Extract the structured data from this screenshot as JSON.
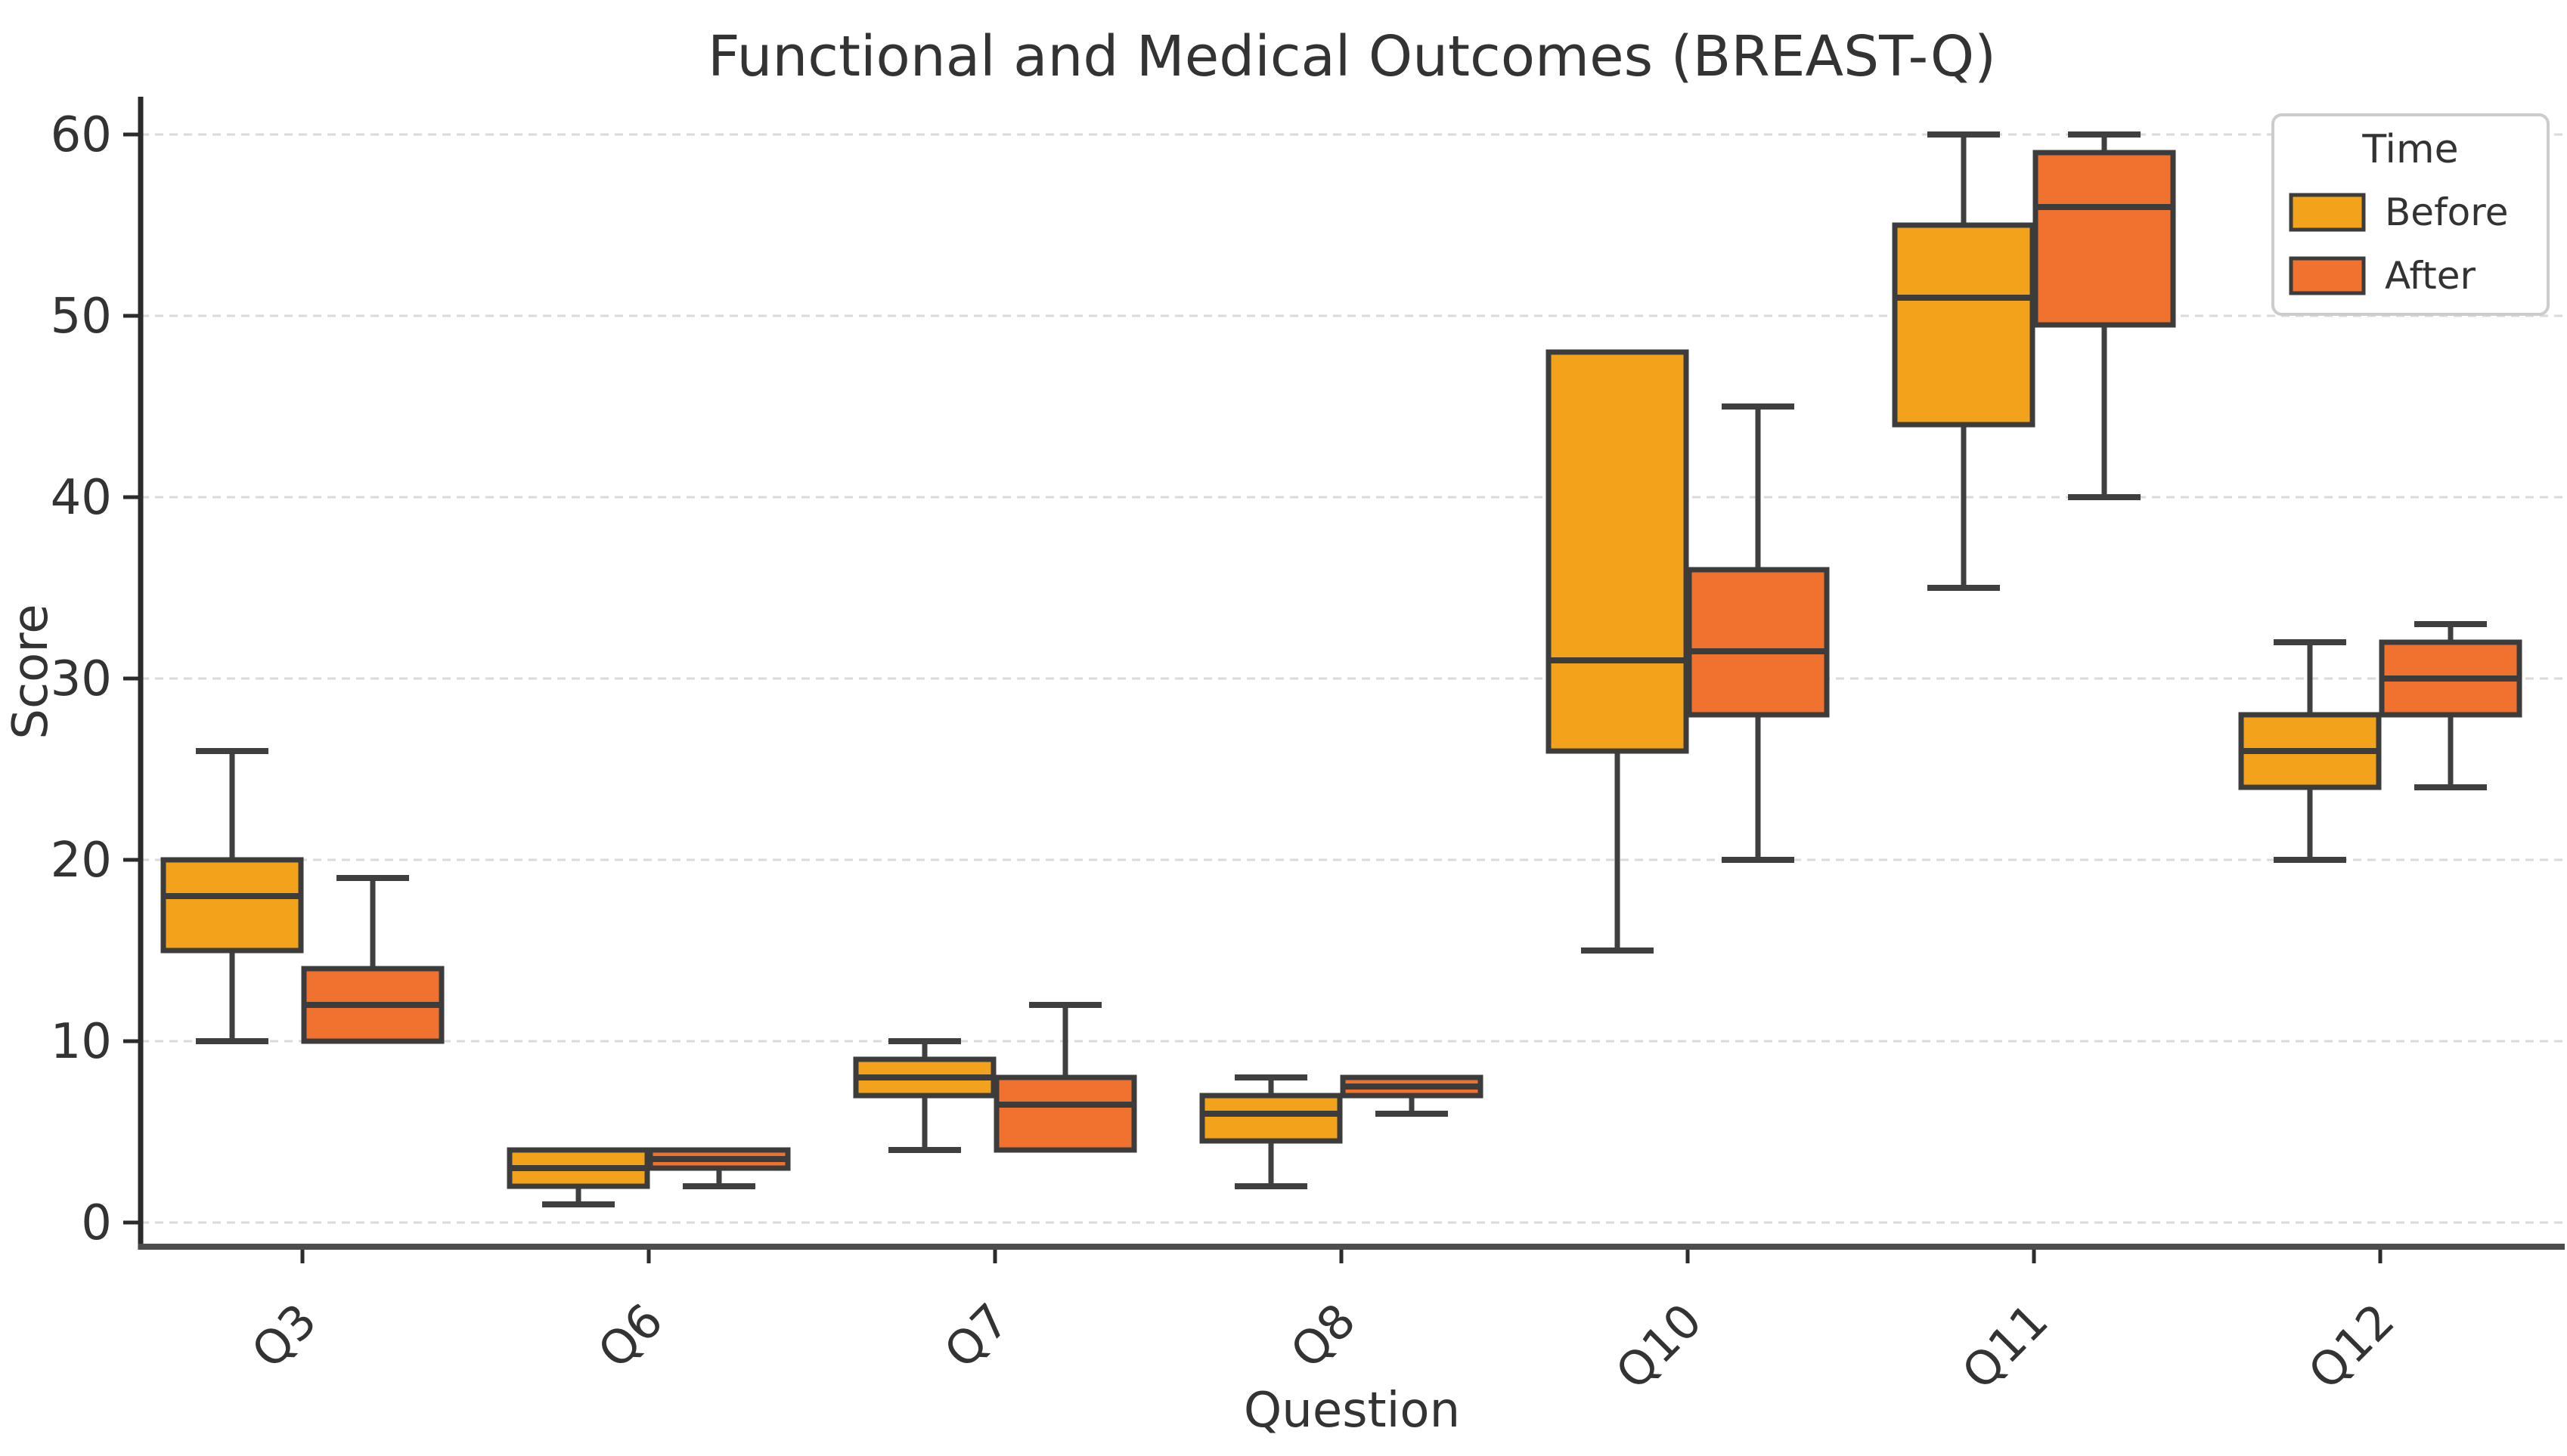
{
  "chart_data": {
    "type": "boxplot",
    "title": "Functional and Medical Outcomes (BREAST-Q)",
    "xlabel": "Question",
    "ylabel": "Score",
    "categories": [
      "Q3",
      "Q6",
      "Q7",
      "Q8",
      "Q10",
      "Q11",
      "Q12"
    ],
    "yticks": [
      0,
      10,
      20,
      30,
      40,
      50,
      60
    ],
    "ylim": [
      0,
      62
    ],
    "grid": "horizontal-dashed",
    "legend": {
      "title": "Time",
      "position": "upper-right",
      "entries": [
        {
          "label": "Before",
          "color": "#F3A21B"
        },
        {
          "label": "After",
          "color": "#F0722E"
        }
      ]
    },
    "series": [
      {
        "name": "Before",
        "color": "#F3A21B",
        "boxes": [
          {
            "category": "Q3",
            "min": 10,
            "q1": 15,
            "median": 18,
            "q3": 20,
            "max": 26
          },
          {
            "category": "Q6",
            "min": 1,
            "q1": 2,
            "median": 3,
            "q3": 4,
            "max": 4
          },
          {
            "category": "Q7",
            "min": 4,
            "q1": 7,
            "median": 8,
            "q3": 9,
            "max": 10
          },
          {
            "category": "Q8",
            "min": 2,
            "q1": 4.5,
            "median": 6,
            "q3": 7,
            "max": 8
          },
          {
            "category": "Q10",
            "min": 15,
            "q1": 26,
            "median": 31,
            "q3": 48,
            "max": 48
          },
          {
            "category": "Q11",
            "min": 35,
            "q1": 44,
            "median": 51,
            "q3": 55,
            "max": 60
          },
          {
            "category": "Q12",
            "min": 20,
            "q1": 24,
            "median": 26,
            "q3": 28,
            "max": 32
          }
        ]
      },
      {
        "name": "After",
        "color": "#F0722E",
        "boxes": [
          {
            "category": "Q3",
            "min": 10,
            "q1": 10,
            "median": 12,
            "q3": 14,
            "max": 19
          },
          {
            "category": "Q6",
            "min": 2,
            "q1": 3,
            "median": 3.5,
            "q3": 4,
            "max": 4
          },
          {
            "category": "Q7",
            "min": 4,
            "q1": 4,
            "median": 6.5,
            "q3": 8,
            "max": 12
          },
          {
            "category": "Q8",
            "min": 6,
            "q1": 7,
            "median": 7.5,
            "q3": 8,
            "max": 8
          },
          {
            "category": "Q10",
            "min": 20,
            "q1": 28,
            "median": 31.5,
            "q3": 36,
            "max": 45
          },
          {
            "category": "Q11",
            "min": 40,
            "q1": 49.5,
            "median": 56,
            "q3": 59,
            "max": 60
          },
          {
            "category": "Q12",
            "min": 24,
            "q1": 28,
            "median": 30,
            "q3": 32,
            "max": 33
          }
        ]
      }
    ],
    "styles": {
      "box_edge": "#3C3C3C",
      "whisker": "#3F3F3F",
      "grid_line": "#DADADA",
      "axis_line": "#444444",
      "text": "#333333",
      "background": "#FFFFFF",
      "legend_border": "#CCCCCC"
    }
  }
}
